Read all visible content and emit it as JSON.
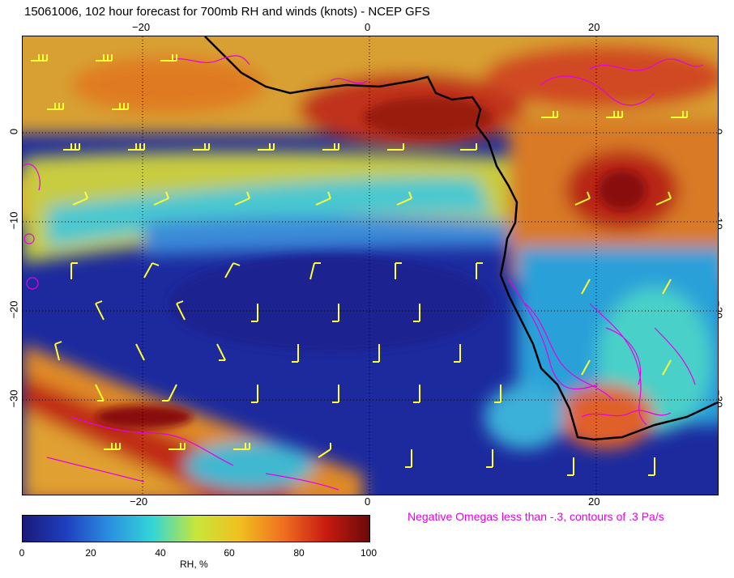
{
  "title": "15061006, 102 hour forecast for 700mb RH and winds (knots) - NCEP GFS",
  "map": {
    "longitude_labels": [
      "−20",
      "0",
      "20"
    ],
    "latitude_labels": [
      "0",
      "−10",
      "−20",
      "−30"
    ],
    "colors": {
      "rh_low": "#1a1f8c",
      "rh_mid": "#2fb7e8",
      "rh_high": "#b81414",
      "wind_barbs": "#ffff33",
      "omega_contours": "#e600e6",
      "coastline": "#000000",
      "gridlines": "#000000"
    }
  },
  "omega_note": "Negative Omegas less than -.3, contours of .3 Pa/s",
  "colorbar": {
    "ticks": [
      "0",
      "20",
      "40",
      "60",
      "80",
      "100"
    ],
    "title": "RH, %",
    "stops": [
      "#1a1a7a",
      "#1f3fbf",
      "#2a8fe0",
      "#33d6d6",
      "#c8e63a",
      "#f0c020",
      "#f07020",
      "#c81a10",
      "#6a0a0a"
    ]
  }
}
